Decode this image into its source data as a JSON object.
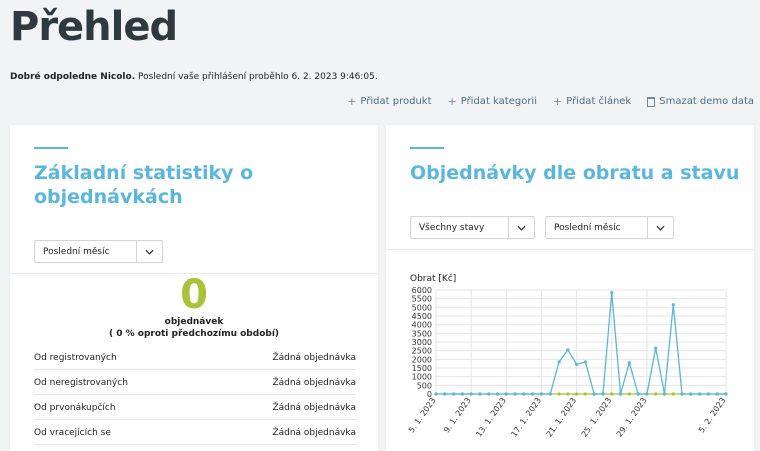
{
  "page_title": "Přehled",
  "greeting": {
    "bold": "Dobré odpoledne Nicolo.",
    "text": " Poslední vaše přihlášení proběhlo 6. 2. 2023 9:46:05."
  },
  "actions": {
    "add_product": "Přidat produkt",
    "add_category": "Přidat kategorii",
    "add_article": "Přidat článek",
    "delete_demo": "Smazat demo data"
  },
  "left_card": {
    "title_line1": "Základní statistiky o",
    "title_line2": "objednávkách",
    "period_select": "Poslední měsíc",
    "orders_count": "0",
    "orders_label": "objednávek",
    "orders_change": "( 0 % oproti předchozímu období)",
    "rows": [
      {
        "label": "Od registrovaných",
        "value": "Žádná objednávka"
      },
      {
        "label": "Od neregistrovaných",
        "value": "Žádná objednávka"
      },
      {
        "label": "Od prvonákupčích",
        "value": "Žádná objednávka"
      },
      {
        "label": "Od vracejících se",
        "value": "Žádná objednávka"
      }
    ]
  },
  "right_card": {
    "title": "Objednávky dle obratu a stavu",
    "status_select": "Všechny stavy",
    "period_select": "Poslední měsíc"
  },
  "colors": {
    "accent": "#5ab6dd",
    "big_number": "#a8c23a",
    "series_total": "#5ab6dd",
    "series_other": "#a8c23a"
  },
  "chart_data": {
    "type": "line",
    "ylabel": "Obrat [Kč]",
    "ylim": [
      0,
      6000
    ],
    "yticks": [
      0,
      500,
      1000,
      1500,
      2000,
      2500,
      3000,
      3500,
      4000,
      4500,
      5000,
      5500,
      6000
    ],
    "x_tick_labels": [
      "5. 1. 2023",
      "9. 1. 2023",
      "13. 1. 2023",
      "17. 1. 2023",
      "21. 1. 2023",
      "25. 1. 2023",
      "29. 1. 2023",
      "5. 2. 2023"
    ],
    "grid": true,
    "series": [
      {
        "values": [
          0,
          0,
          0,
          0,
          0,
          0,
          0,
          0,
          0,
          0,
          0,
          0,
          0,
          0,
          1850,
          2550,
          1700,
          1850,
          0,
          0,
          5850,
          0,
          1800,
          0,
          0,
          2650,
          0,
          5150,
          0,
          0,
          0,
          0,
          0,
          0
        ]
      },
      {
        "values": [
          0,
          0,
          0,
          0,
          0,
          0,
          0,
          0,
          0,
          0,
          0,
          0,
          0,
          0,
          0,
          0,
          0,
          0,
          0,
          0,
          0,
          0,
          0,
          0,
          0,
          0,
          0,
          0,
          0,
          0,
          0,
          0,
          0,
          0
        ]
      }
    ]
  }
}
